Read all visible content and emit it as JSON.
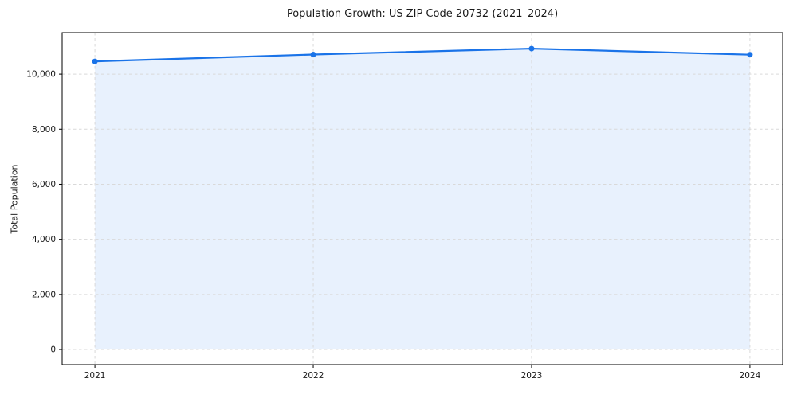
{
  "chart_data": {
    "type": "line",
    "title": "Population Growth: US ZIP Code 20732 (2021–2024)",
    "ylabel": "Total Population",
    "xlabel": "",
    "x": [
      2021,
      2022,
      2023,
      2024
    ],
    "x_tick_labels": [
      "2021",
      "2022",
      "2023",
      "2024"
    ],
    "series": [
      {
        "name": "Total Population",
        "values": [
          10461,
          10712,
          10926,
          10705
        ]
      }
    ],
    "y_ticks": [
      {
        "value": 0,
        "label": "0"
      },
      {
        "value": 2000,
        "label": "2,000"
      },
      {
        "value": 4000,
        "label": "4,000"
      },
      {
        "value": 6000,
        "label": "6,000"
      },
      {
        "value": 8000,
        "label": "8,000"
      },
      {
        "value": 10000,
        "label": "10,000"
      }
    ],
    "xlim": [
      2020.85,
      2024.15
    ],
    "ylim": [
      -548,
      11506
    ],
    "grid": true,
    "grid_style": "dashed",
    "fill_to_zero": true,
    "legend": "none",
    "colors": {
      "line": "#1a73e8",
      "fill": "rgba(26,115,232,0.10)",
      "grid": "#d9d9d9",
      "spine": "#000000",
      "text": "#1a1a1a"
    }
  }
}
